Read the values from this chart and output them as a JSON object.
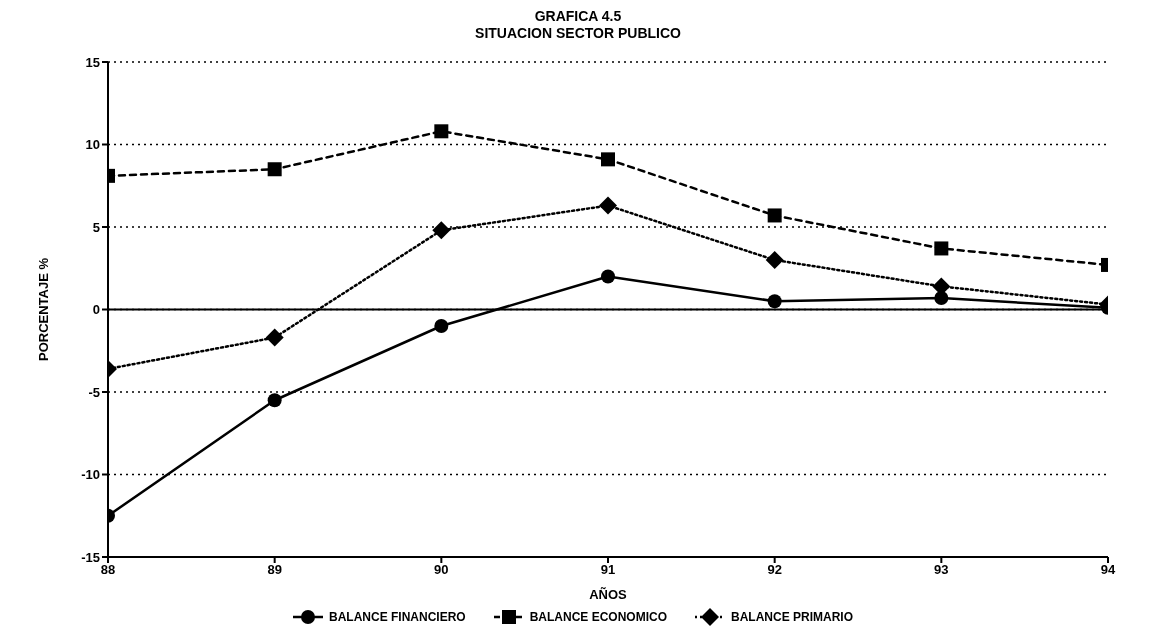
{
  "chart_data": {
    "type": "line",
    "title": "GRAFICA 4.5",
    "subtitle": "SITUACION SECTOR PUBLICO",
    "xlabel": "AÑOS",
    "ylabel": "PORCENTAJE %",
    "categories": [
      "88",
      "89",
      "90",
      "91",
      "92",
      "93",
      "94"
    ],
    "series": [
      {
        "name": "BALANCE FINANCIERO",
        "color": "#000000",
        "marker": "circle",
        "line_style": "solid",
        "values": [
          -12.5,
          -5.5,
          -1.0,
          2.0,
          0.5,
          0.7,
          0.1
        ]
      },
      {
        "name": "BALANCE ECONOMICO",
        "color": "#000000",
        "marker": "square",
        "line_style": "dashed",
        "values": [
          8.1,
          8.5,
          10.8,
          9.1,
          5.7,
          3.7,
          2.7
        ]
      },
      {
        "name": "BALANCE PRIMARIO",
        "color": "#000000",
        "marker": "diamond",
        "line_style": "dotted",
        "values": [
          -3.6,
          -1.7,
          4.8,
          6.3,
          3.0,
          1.4,
          0.3
        ]
      }
    ],
    "ylim": [
      -15,
      15
    ],
    "yticks": [
      -15,
      -10,
      -5,
      0,
      5,
      10,
      15
    ],
    "grid": "y",
    "legend": "bottom",
    "ref_lines": [
      {
        "axis": "y",
        "value": 0,
        "color": "#000000",
        "line_style": "solid"
      }
    ]
  }
}
